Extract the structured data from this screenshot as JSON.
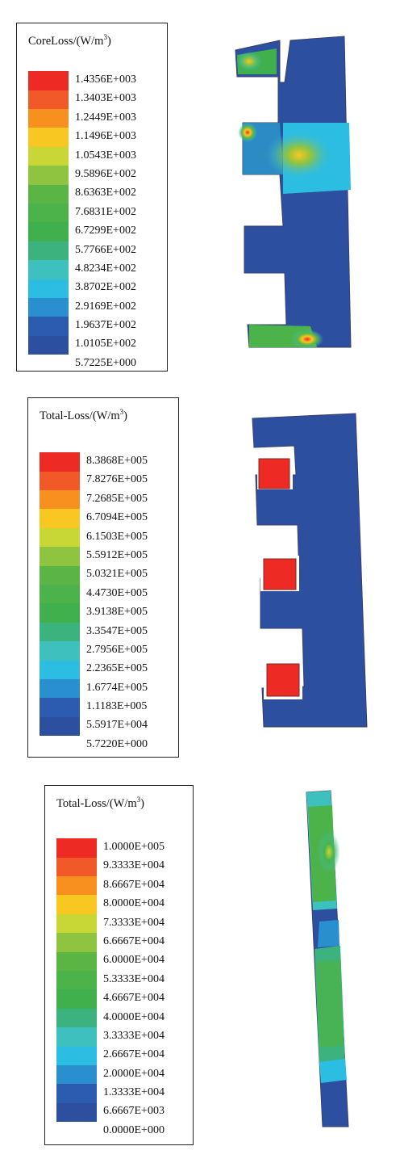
{
  "palette": [
    "#ed2a24",
    "#f15a28",
    "#f7901e",
    "#f9c721",
    "#c8d636",
    "#8fc440",
    "#5ab545",
    "#4bb34a",
    "#3fb04c",
    "#3cb27f",
    "#3ec0bf",
    "#2cbde2",
    "#2a8fcf",
    "#2b5cb0",
    "#2d4f9f"
  ],
  "panels": [
    {
      "title": "CoreLoss/(W/m",
      "title_sup": "3",
      "title_close": ")",
      "values": [
        "1.4356E+003",
        "1.3403E+003",
        "1.2449E+003",
        "1.1496E+003",
        "1.0543E+003",
        "9.5896E+002",
        "8.6363E+002",
        "7.6831E+002",
        "6.7299E+002",
        "5.7766E+002",
        "4.8234E+002",
        "3.8702E+002",
        "2.9169E+002",
        "1.9637E+002",
        "1.0105E+002",
        "5.7225E+000"
      ]
    },
    {
      "title": "Total-Loss/(W/m",
      "title_sup": "3",
      "title_close": ")",
      "values": [
        "8.3868E+005",
        "7.8276E+005",
        "7.2685E+005",
        "6.7094E+005",
        "6.1503E+005",
        "5.5912E+005",
        "5.0321E+005",
        "4.4730E+005",
        "3.9138E+005",
        "3.3547E+005",
        "2.7956E+005",
        "2.2365E+005",
        "1.6774E+005",
        "1.1183E+005",
        "5.5917E+004",
        "5.7220E+000"
      ]
    },
    {
      "title": "Total-Loss/(W/m",
      "title_sup": "3",
      "title_close": ")",
      "values": [
        "1.0000E+005",
        "9.3333E+004",
        "8.6667E+004",
        "8.0000E+004",
        "7.3333E+004",
        "6.6667E+004",
        "6.0000E+004",
        "5.3333E+004",
        "4.6667E+004",
        "4.0000E+004",
        "3.3333E+004",
        "2.6667E+004",
        "2.0000E+004",
        "1.3333E+004",
        "6.6667E+003",
        "0.0000E+000"
      ]
    }
  ]
}
